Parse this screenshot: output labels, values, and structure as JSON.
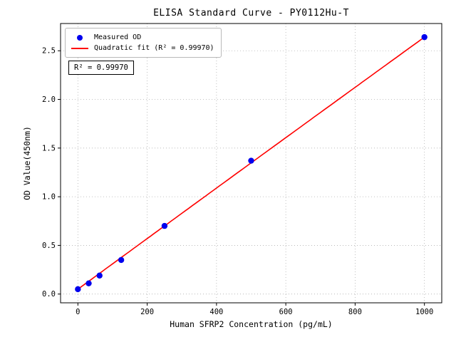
{
  "chart_data": {
    "type": "scatter",
    "title": "ELISA Standard Curve - PY0112Hu-T",
    "xlabel": "Human SFRP2 Concentration (pg/mL)",
    "ylabel": "OD Value(450nm)",
    "xlim": [
      -50,
      1050
    ],
    "ylim": [
      -0.09,
      2.78
    ],
    "xticks": [
      0,
      200,
      400,
      600,
      800,
      1000
    ],
    "yticks": [
      0.0,
      0.5,
      1.0,
      1.5,
      2.0,
      2.5
    ],
    "grid": true,
    "grid_style": "dotted",
    "legend_position": "upper left",
    "series": [
      {
        "name": "Measured OD",
        "type": "scatter",
        "color": "#0000ee",
        "x": [
          0,
          31.25,
          62.5,
          125,
          250,
          500,
          1000
        ],
        "y": [
          0.05,
          0.11,
          0.19,
          0.35,
          0.7,
          1.37,
          2.64
        ]
      },
      {
        "name": "Quadratic fit (R² = 0.99970)",
        "type": "line",
        "color": "#ff0000",
        "fit_coefficients": {
          "a": 0.05,
          "b": 0.0026033,
          "c": -1.333e-08
        },
        "x_range": [
          0,
          1000
        ]
      }
    ],
    "annotation": {
      "text": "R² = 0.99970"
    },
    "r_squared": 0.9997
  },
  "style": {
    "grid_color": "#b0b0b0",
    "spine_color": "#000000",
    "background": "#ffffff"
  }
}
